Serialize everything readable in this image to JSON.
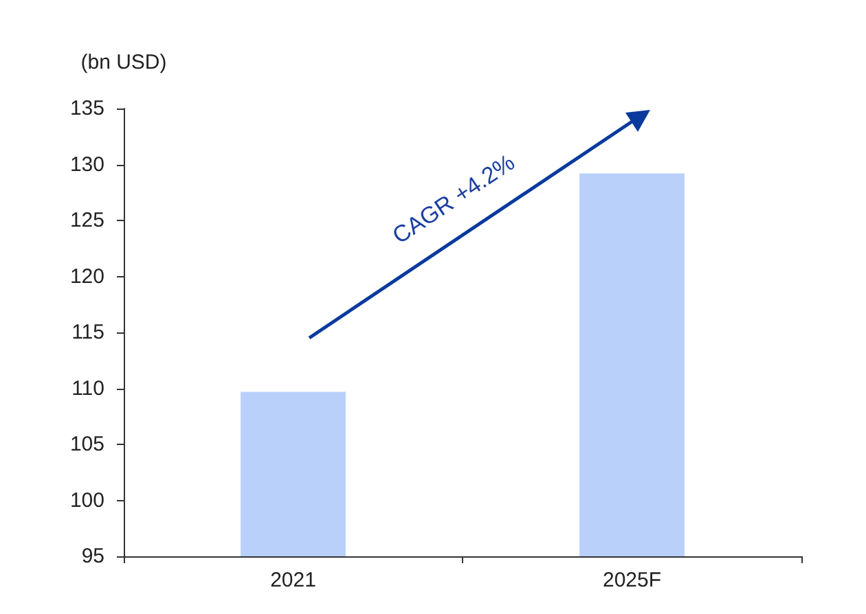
{
  "chart_data": {
    "type": "bar",
    "ylabel": "(bn USD)",
    "categories": [
      "2021",
      "2025F"
    ],
    "values": [
      109.7,
      129.2
    ],
    "color": "#b9d0fb",
    "ylim": [
      95,
      135
    ],
    "yticks": [
      95,
      100,
      105,
      110,
      115,
      120,
      125,
      130,
      135
    ],
    "annotations": [
      "CAGR +4.2%"
    ]
  }
}
